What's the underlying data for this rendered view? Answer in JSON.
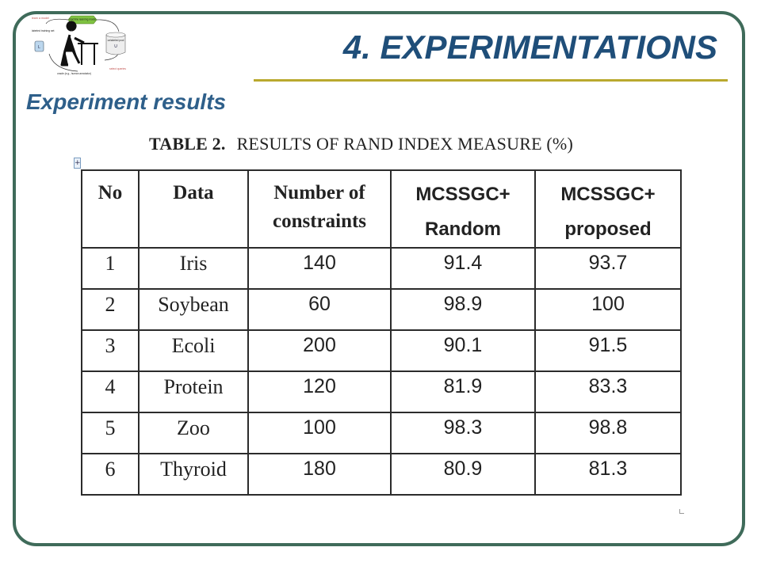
{
  "slide": {
    "title": "4. EXPERIMENTATIONS",
    "subtitle": "Experiment results"
  },
  "logo": {
    "labels": {
      "top_left": "learn a model",
      "top_box": "machine learning model",
      "left": "labeled training set",
      "right": "unlabeled pool",
      "right_letter": "U",
      "left_letter": "L",
      "bottom": "oracle (e.g., human annotator)",
      "bottom_right": "select queries"
    }
  },
  "table": {
    "caption_label": "TABLE 2.",
    "caption_text": "RESULTS OF RAND INDEX MEASURE (%)",
    "headers": [
      [
        "No"
      ],
      [
        "Data"
      ],
      [
        "Number of",
        "constraints"
      ],
      [
        "MCSSGC+",
        "Random"
      ],
      [
        "MCSSGC+",
        "proposed"
      ]
    ],
    "rows": [
      [
        "1",
        "Iris",
        "140",
        "91.4",
        "93.7"
      ],
      [
        "2",
        "Soybean",
        "60",
        "98.9",
        "100"
      ],
      [
        "3",
        "Ecoli",
        "200",
        "90.1",
        "91.5"
      ],
      [
        "4",
        "Protein",
        "120",
        "81.9",
        "83.3"
      ],
      [
        "5",
        "Zoo",
        "100",
        "98.3",
        "98.8"
      ],
      [
        "6",
        "Thyroid",
        "180",
        "80.9",
        "81.3"
      ]
    ]
  },
  "colors": {
    "frame": "#3f6b5a",
    "title": "#1f4e79",
    "rule": "#b9a92e",
    "logo_box": "#7fc241"
  }
}
